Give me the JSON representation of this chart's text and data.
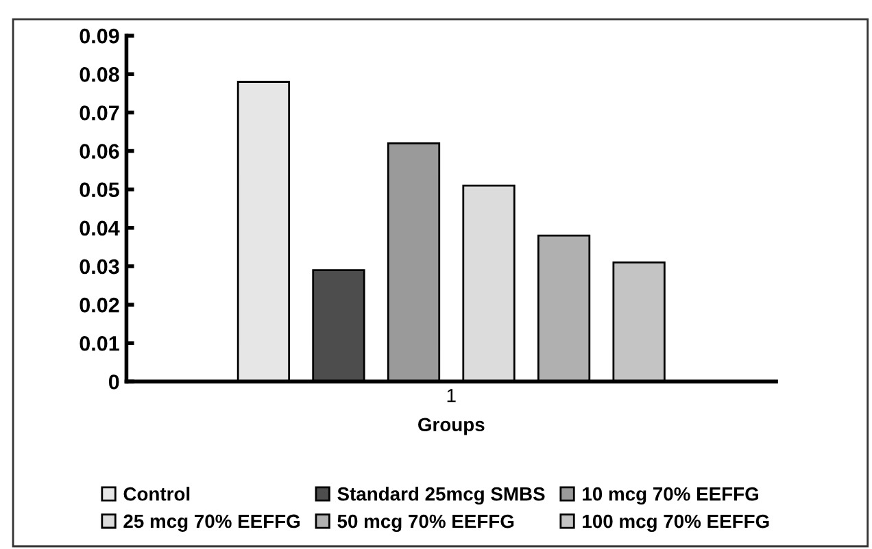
{
  "chart_data": {
    "type": "bar",
    "xlabel": "Groups",
    "categories": [
      "1"
    ],
    "series": [
      {
        "name": "Control",
        "color": "#e6e6e6",
        "values": [
          0.078
        ]
      },
      {
        "name": "Standard 25mcg SMBS",
        "color": "#4d4d4d",
        "values": [
          0.029
        ]
      },
      {
        "name": "10 mcg 70% EEFFG",
        "color": "#9a9a9a",
        "values": [
          0.062
        ]
      },
      {
        "name": "25 mcg 70% EEFFG",
        "color": "#dcdcdc",
        "values": [
          0.051
        ]
      },
      {
        "name": "50 mcg 70% EEFFG",
        "color": "#b0b0b0",
        "values": [
          0.038
        ]
      },
      {
        "name": "100 mcg 70% EEFFG",
        "color": "#c4c4c4",
        "values": [
          0.031
        ]
      }
    ],
    "ylim": [
      0,
      0.09
    ],
    "yticks": [
      0,
      0.01,
      0.02,
      0.03,
      0.04,
      0.05,
      0.06,
      0.07,
      0.08,
      0.09
    ],
    "grid": false,
    "legend": "bottom"
  }
}
